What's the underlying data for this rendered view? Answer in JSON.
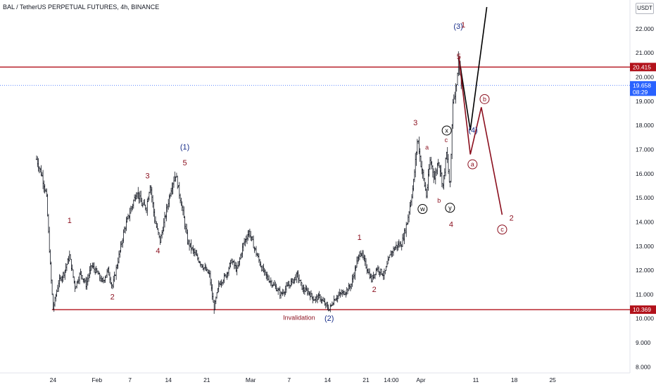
{
  "header": {
    "title": "BAL / TetherUS PERPETUAL FUTURES, 4h, BINANCE",
    "currency": "USDT"
  },
  "colors": {
    "bar": "#131722",
    "wave_red": "#8b0f1e",
    "wave_blue": "#1a2f8a",
    "level_red": "#b2121b",
    "current_price": "#2962ff",
    "projection_black": "#000000"
  },
  "chart_data": {
    "type": "ohlc",
    "title": "BAL / TetherUS PERPETUAL FUTURES, 4h, BINANCE",
    "y_axis": {
      "ticks": [
        "22.000",
        "21.000",
        "20.000",
        "19.000",
        "18.000",
        "17.000",
        "16.000",
        "15.000",
        "14.000",
        "13.000",
        "12.000",
        "11.000",
        "10.000",
        "9.000",
        "8.000"
      ],
      "range": [
        8.0,
        22.8
      ]
    },
    "x_axis": {
      "ticks": [
        {
          "label": "24",
          "d": -7
        },
        {
          "label": "Feb",
          "d": 1
        },
        {
          "label": "7",
          "d": 7
        },
        {
          "label": "14",
          "d": 14
        },
        {
          "label": "21",
          "d": 21
        },
        {
          "label": "Mar",
          "d": 29
        },
        {
          "label": "7",
          "d": 36
        },
        {
          "label": "14",
          "d": 43
        },
        {
          "label": "21",
          "d": 50
        },
        {
          "label": "14:00",
          "d": 54.6
        },
        {
          "label": "Apr",
          "d": 60
        },
        {
          "label": "11",
          "d": 70
        },
        {
          "label": "18",
          "d": 77
        },
        {
          "label": "25",
          "d": 84
        }
      ]
    },
    "levels": [
      {
        "name": "resistance",
        "value": 20.415,
        "label": "20.415"
      },
      {
        "name": "support",
        "value": 10.369,
        "label": "10.369"
      }
    ],
    "current_price": {
      "value": 19.658,
      "label": "19.658",
      "countdown": "08:29"
    },
    "price_path": [
      [
        -10,
        16.6
      ],
      [
        -9,
        15.9
      ],
      [
        -8.2,
        15.1
      ],
      [
        -7.8,
        13.4
      ],
      [
        -7.4,
        11.8
      ],
      [
        -7,
        10.4
      ],
      [
        -6,
        11.5
      ],
      [
        -5,
        11.9
      ],
      [
        -4,
        12.6
      ],
      [
        -3,
        11.3
      ],
      [
        -2,
        11.9
      ],
      [
        -1,
        11.4
      ],
      [
        0,
        12.2
      ],
      [
        1,
        11.9
      ],
      [
        2,
        11.5
      ],
      [
        3,
        12.0
      ],
      [
        3.8,
        11.3
      ],
      [
        5,
        12.6
      ],
      [
        6,
        13.7
      ],
      [
        7,
        14.4
      ],
      [
        8.3,
        15.3
      ],
      [
        9.2,
        14.7
      ],
      [
        10,
        14.6
      ],
      [
        10.7,
        15.6
      ],
      [
        11.5,
        14.1
      ],
      [
        12.5,
        13.2
      ],
      [
        13.5,
        14.3
      ],
      [
        14.5,
        15.4
      ],
      [
        15.3,
        16.0
      ],
      [
        16.5,
        14.6
      ],
      [
        17.5,
        13.2
      ],
      [
        19,
        12.6
      ],
      [
        20.5,
        12.1
      ],
      [
        21.5,
        11.8
      ],
      [
        22.3,
        10.4
      ],
      [
        23.2,
        11.4
      ],
      [
        24.5,
        11.8
      ],
      [
        25.5,
        12.4
      ],
      [
        26.5,
        12.0
      ],
      [
        27.7,
        13.1
      ],
      [
        28.7,
        13.6
      ],
      [
        29.7,
        12.9
      ],
      [
        31,
        12.1
      ],
      [
        32,
        11.7
      ],
      [
        33.5,
        11.3
      ],
      [
        34.5,
        11.0
      ],
      [
        36,
        11.4
      ],
      [
        37.5,
        11.8
      ],
      [
        38.5,
        11.2
      ],
      [
        39.5,
        11.1
      ],
      [
        40.5,
        10.8
      ],
      [
        41.5,
        10.9
      ],
      [
        42.5,
        10.6
      ],
      [
        43.3,
        10.37
      ],
      [
        44.2,
        10.8
      ],
      [
        45.2,
        11.0
      ],
      [
        46.2,
        11.1
      ],
      [
        47.3,
        11.4
      ],
      [
        48.3,
        12.3
      ],
      [
        49,
        12.8
      ],
      [
        49.8,
        12.3
      ],
      [
        51,
        11.6
      ],
      [
        52,
        12.1
      ],
      [
        53.3,
        11.8
      ],
      [
        54.5,
        12.7
      ],
      [
        55.5,
        13.0
      ],
      [
        56.5,
        13.1
      ],
      [
        57.5,
        14.0
      ],
      [
        58.6,
        15.5
      ],
      [
        59.4,
        17.5
      ],
      [
        60,
        16.4
      ],
      [
        61,
        15.1
      ],
      [
        61.7,
        16.6
      ],
      [
        62.5,
        15.8
      ],
      [
        63.2,
        16.6
      ],
      [
        64,
        15.5
      ],
      [
        64.7,
        16.9
      ],
      [
        65.3,
        15.3
      ],
      [
        65.8,
        19.0
      ],
      [
        66.4,
        19.6
      ],
      [
        66.9,
        20.8
      ],
      [
        67.4,
        19.66
      ]
    ],
    "projections": [
      {
        "name": "bullish-path",
        "color": "black",
        "points": [
          [
            66.9,
            20.85
          ],
          [
            69,
            17.8
          ],
          [
            72,
            22.9
          ]
        ]
      },
      {
        "name": "corrective-path",
        "color": "red",
        "points": [
          [
            66.9,
            20.85
          ],
          [
            69,
            16.8
          ],
          [
            71,
            18.75
          ],
          [
            74.8,
            14.3
          ]
        ]
      }
    ],
    "wave_labels": [
      {
        "text": "(1)",
        "d": 17,
        "y": 17.0,
        "color": "blue",
        "style": "plain"
      },
      {
        "text": "5",
        "d": 17,
        "y": 16.35,
        "color": "red",
        "style": "plain"
      },
      {
        "text": "1",
        "d": -4,
        "y": 13.95,
        "color": "red",
        "style": "plain"
      },
      {
        "text": "2",
        "d": 3.8,
        "y": 10.8,
        "color": "red",
        "style": "plain"
      },
      {
        "text": "3",
        "d": 10.2,
        "y": 15.8,
        "color": "red",
        "style": "plain"
      },
      {
        "text": "4",
        "d": 12.1,
        "y": 12.7,
        "color": "red",
        "style": "plain"
      },
      {
        "text": "Invalidation",
        "d": 37.8,
        "y": 9.95,
        "color": "red",
        "style": "small"
      },
      {
        "text": "(2)",
        "d": 43.3,
        "y": 9.9,
        "color": "blue",
        "style": "plain"
      },
      {
        "text": "1",
        "d": 48.8,
        "y": 13.25,
        "color": "red",
        "style": "plain"
      },
      {
        "text": "2",
        "d": 51.5,
        "y": 11.1,
        "color": "red",
        "style": "plain"
      },
      {
        "text": "3",
        "d": 59,
        "y": 18.0,
        "color": "red",
        "style": "plain"
      },
      {
        "text": "a",
        "d": 61.1,
        "y": 17.0,
        "color": "red",
        "style": "small"
      },
      {
        "text": "b",
        "d": 63.3,
        "y": 14.8,
        "color": "red",
        "style": "small"
      },
      {
        "text": "c",
        "d": 64.6,
        "y": 17.3,
        "color": "red",
        "style": "small"
      },
      {
        "text": "w",
        "d": 60.3,
        "y": 14.45,
        "color": "black",
        "style": "circle"
      },
      {
        "text": "x",
        "d": 64.7,
        "y": 17.7,
        "color": "black",
        "style": "circle"
      },
      {
        "text": "y",
        "d": 65.3,
        "y": 14.5,
        "color": "black",
        "style": "circle"
      },
      {
        "text": "4",
        "d": 65.5,
        "y": 13.8,
        "color": "red",
        "style": "plain"
      },
      {
        "text": "(3)",
        "d": 66.8,
        "y": 22.0,
        "color": "blue",
        "style": "plain"
      },
      {
        "text": "1",
        "d": 67.7,
        "y": 22.05,
        "color": "red",
        "style": "plain"
      },
      {
        "text": "5",
        "d": 66.9,
        "y": 20.75,
        "color": "red",
        "style": "plain"
      },
      {
        "text": "(4)",
        "d": 69.5,
        "y": 17.7,
        "color": "blue",
        "style": "plain"
      },
      {
        "text": "a",
        "d": 69.4,
        "y": 16.3,
        "color": "red",
        "style": "circle"
      },
      {
        "text": "b",
        "d": 71.6,
        "y": 19.0,
        "color": "red",
        "style": "circle"
      },
      {
        "text": "c",
        "d": 74.8,
        "y": 13.6,
        "color": "red",
        "style": "circle"
      },
      {
        "text": "2",
        "d": 76.5,
        "y": 14.05,
        "color": "red",
        "style": "plain"
      }
    ]
  }
}
